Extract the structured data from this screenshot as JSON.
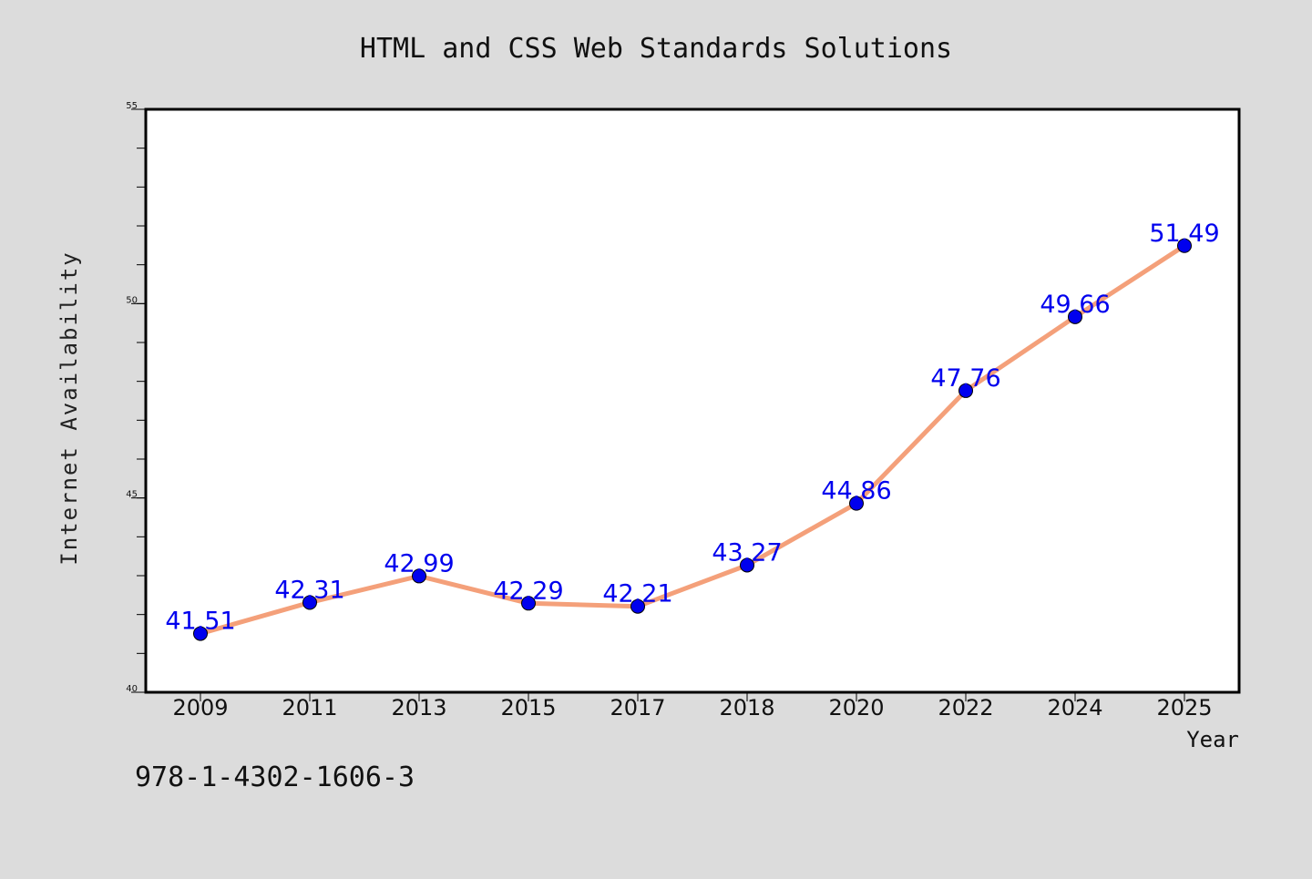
{
  "chart_data": {
    "type": "line",
    "title": "HTML and CSS Web Standards Solutions",
    "xlabel": "Year",
    "ylabel": "Internet Availability",
    "categories": [
      "2009",
      "2011",
      "2013",
      "2015",
      "2017",
      "2018",
      "2020",
      "2022",
      "2024",
      "2025"
    ],
    "series": [
      {
        "values": [
          41.51,
          42.31,
          42.99,
          42.29,
          42.21,
          43.27,
          44.86,
          47.76,
          49.66,
          51.49
        ],
        "line_color": "#f4a07a",
        "marker_color": "#0000ee"
      }
    ],
    "data_labels": [
      "41.51",
      "42.31",
      "42.99",
      "42.29",
      "42.21",
      "43.27",
      "44.86",
      "47.76",
      "49.66",
      "51.49"
    ],
    "data_label_color": "#0000ee",
    "ylim": [
      40,
      55
    ],
    "yticks": [
      "40",
      "45",
      "50",
      "55"
    ],
    "grid": false,
    "legend": "none",
    "annotation": "978-1-4302-1606-3",
    "background_color": "#dcdcdc",
    "plot_background_color": "#ffffff"
  }
}
